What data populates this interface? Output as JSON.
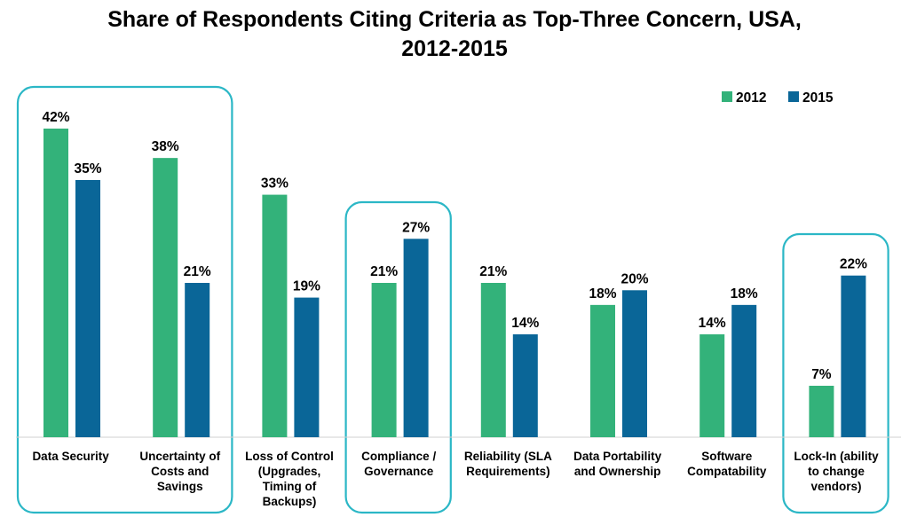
{
  "chart_data": {
    "type": "bar",
    "title_lines": [
      "Share of Respondents Citing Criteria as Top-Three Concern, USA,",
      "2012-2015"
    ],
    "categories": [
      [
        "Data Security"
      ],
      [
        "Uncertainty of",
        "Costs and",
        "Savings"
      ],
      [
        "Loss of Control",
        "(Upgrades,",
        "Timing of",
        "Backups)"
      ],
      [
        "Compliance /",
        "Governance"
      ],
      [
        "Reliability (SLA",
        "Requirements)"
      ],
      [
        "Data Portability",
        "and Ownership"
      ],
      [
        "Software",
        "Compatability"
      ],
      [
        "Lock-In (ability",
        "to change",
        "vendors)"
      ]
    ],
    "series": [
      {
        "name": "2012",
        "color": "#33b27a",
        "values": [
          42,
          38,
          33,
          21,
          21,
          18,
          14,
          7
        ],
        "labels": [
          "42%",
          "38%",
          "33%",
          "21%",
          "21%",
          "18%",
          "14%",
          "7%"
        ]
      },
      {
        "name": "2015",
        "color": "#0a6698",
        "values": [
          35,
          21,
          19,
          27,
          14,
          20,
          18,
          22
        ],
        "labels": [
          "35%",
          "21%",
          "19%",
          "27%",
          "14%",
          "20%",
          "18%",
          "22%"
        ]
      }
    ],
    "ylim": [
      0,
      42
    ],
    "legend_position": "top-right",
    "highlight_color": "#2bb7c6",
    "highlight_groups": [
      [
        0,
        1
      ],
      [
        3,
        3
      ],
      [
        7,
        7
      ]
    ],
    "grid": false
  }
}
